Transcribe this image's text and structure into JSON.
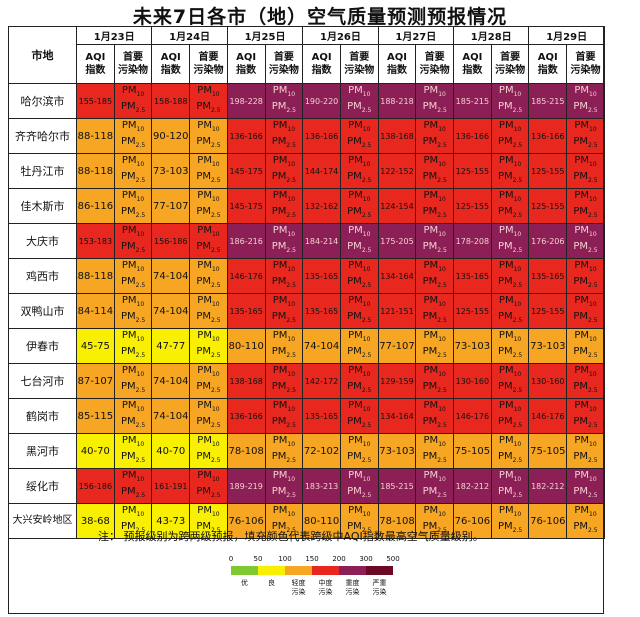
{
  "title": "未来7日各市（地）空气质量预测预报情况",
  "header": {
    "city_col": "市地",
    "aqi_label": "AQI\n指数",
    "pollutant_label": "首要\n污染物"
  },
  "colors": {
    "excellent": "#7ec832",
    "good": "#f8f000",
    "light": "#f6a623",
    "moderate": "#e8281e",
    "heavy": "#8c1f55",
    "severe": "#6a0a24"
  },
  "legend": {
    "ticks": [
      "0",
      "50",
      "100",
      "150",
      "200",
      "300",
      "500"
    ],
    "labels": [
      "优",
      "良",
      "轻度\n污染",
      "中度\n污染",
      "重度\n污染",
      "严重\n污染"
    ]
  },
  "note": "注：  预报级别为跨两级预报，填充颜色代表跨级中AQI指数最高空气质量级别。",
  "pm_text": {
    "line1": "PM",
    "sub1": "10",
    "line2": "PM",
    "sub2": "2.5"
  },
  "chart_data": {
    "type": "table",
    "title": "未来7日各市（地）空气质量预测预报情况",
    "columns": [
      "1月23日",
      "1月24日",
      "1月25日",
      "1月26日",
      "1月27日",
      "1月28日",
      "1月29日"
    ],
    "rows": [
      {
        "city": "哈尔滨市",
        "aqi": [
          "155-185",
          "158-188",
          "198-228",
          "190-220",
          "188-218",
          "185-215",
          "185-215"
        ],
        "level": [
          "moderate",
          "moderate",
          "heavy",
          "heavy",
          "heavy",
          "heavy",
          "heavy"
        ]
      },
      {
        "city": "齐齐哈尔市",
        "aqi": [
          "88-118",
          "90-120",
          "136-166",
          "136-166",
          "138-168",
          "136-166",
          "136-166"
        ],
        "level": [
          "light",
          "light",
          "moderate",
          "moderate",
          "moderate",
          "moderate",
          "moderate"
        ]
      },
      {
        "city": "牡丹江市",
        "aqi": [
          "88-118",
          "73-103",
          "145-175",
          "144-174",
          "122-152",
          "125-155",
          "125-155"
        ],
        "level": [
          "light",
          "light",
          "moderate",
          "moderate",
          "moderate",
          "moderate",
          "moderate"
        ]
      },
      {
        "city": "佳木斯市",
        "aqi": [
          "86-116",
          "77-107",
          "145-175",
          "132-162",
          "124-154",
          "125-155",
          "125-155"
        ],
        "level": [
          "light",
          "light",
          "moderate",
          "moderate",
          "moderate",
          "moderate",
          "moderate"
        ]
      },
      {
        "city": "大庆市",
        "aqi": [
          "153-183",
          "156-186",
          "186-216",
          "184-214",
          "175-205",
          "178-208",
          "176-206"
        ],
        "level": [
          "moderate",
          "moderate",
          "heavy",
          "heavy",
          "heavy",
          "heavy",
          "heavy"
        ]
      },
      {
        "city": "鸡西市",
        "aqi": [
          "88-118",
          "74-104",
          "146-176",
          "135-165",
          "134-164",
          "135-165",
          "135-165"
        ],
        "level": [
          "light",
          "light",
          "moderate",
          "moderate",
          "moderate",
          "moderate",
          "moderate"
        ]
      },
      {
        "city": "双鸭山市",
        "aqi": [
          "84-114",
          "74-104",
          "135-165",
          "135-165",
          "121-151",
          "125-155",
          "125-155"
        ],
        "level": [
          "light",
          "light",
          "moderate",
          "moderate",
          "moderate",
          "moderate",
          "moderate"
        ]
      },
      {
        "city": "伊春市",
        "aqi": [
          "45-75",
          "47-77",
          "80-110",
          "74-104",
          "77-107",
          "73-103",
          "73-103"
        ],
        "level": [
          "good",
          "good",
          "light",
          "light",
          "light",
          "light",
          "light"
        ]
      },
      {
        "city": "七台河市",
        "aqi": [
          "87-107",
          "74-104",
          "138-168",
          "142-172",
          "129-159",
          "130-160",
          "130-160"
        ],
        "level": [
          "light",
          "light",
          "moderate",
          "moderate",
          "moderate",
          "moderate",
          "moderate"
        ]
      },
      {
        "city": "鹤岗市",
        "aqi": [
          "85-115",
          "74-104",
          "136-166",
          "135-165",
          "134-164",
          "146-176",
          "146-176"
        ],
        "level": [
          "light",
          "light",
          "moderate",
          "moderate",
          "moderate",
          "moderate",
          "moderate"
        ]
      },
      {
        "city": "黑河市",
        "aqi": [
          "40-70",
          "40-70",
          "78-108",
          "72-102",
          "73-103",
          "75-105",
          "75-105"
        ],
        "level": [
          "good",
          "good",
          "light",
          "light",
          "light",
          "light",
          "light"
        ]
      },
      {
        "city": "绥化市",
        "aqi": [
          "156-186",
          "161-191",
          "189-219",
          "183-213",
          "185-215",
          "182-212",
          "182-212"
        ],
        "level": [
          "moderate",
          "moderate",
          "heavy",
          "heavy",
          "heavy",
          "heavy",
          "heavy"
        ]
      },
      {
        "city": "大兴安岭地区",
        "aqi": [
          "38-68",
          "43-73",
          "76-106",
          "80-110",
          "78-108",
          "76-106",
          "76-106"
        ],
        "level": [
          "good",
          "good",
          "light",
          "light",
          "light",
          "light",
          "light"
        ]
      }
    ]
  }
}
